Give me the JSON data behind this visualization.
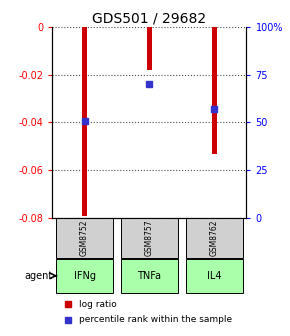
{
  "title": "GDS501 / 29682",
  "categories": [
    "IFNg",
    "TNFa",
    "IL4"
  ],
  "gsm_labels": [
    "GSM8752",
    "GSM8757",
    "GSM8762"
  ],
  "log_ratios": [
    -0.079,
    -0.018,
    -0.053
  ],
  "percentile_ranks": [
    51,
    70,
    57
  ],
  "ylim_left": [
    -0.08,
    0
  ],
  "ylim_right": [
    0,
    100
  ],
  "yticks_left": [
    0,
    -0.02,
    -0.04,
    -0.06,
    -0.08
  ],
  "yticks_right": [
    0,
    25,
    50,
    75,
    100
  ],
  "bar_color": "#cc0000",
  "percentile_color": "#3333cc",
  "bar_width": 0.08,
  "agent_bg": "#aaffaa",
  "gsm_box_color": "#d0d0d0",
  "legend_bar_label": "log ratio",
  "legend_pct_label": "percentile rank within the sample",
  "title_fontsize": 10,
  "tick_fontsize": 7,
  "label_fontsize": 7
}
